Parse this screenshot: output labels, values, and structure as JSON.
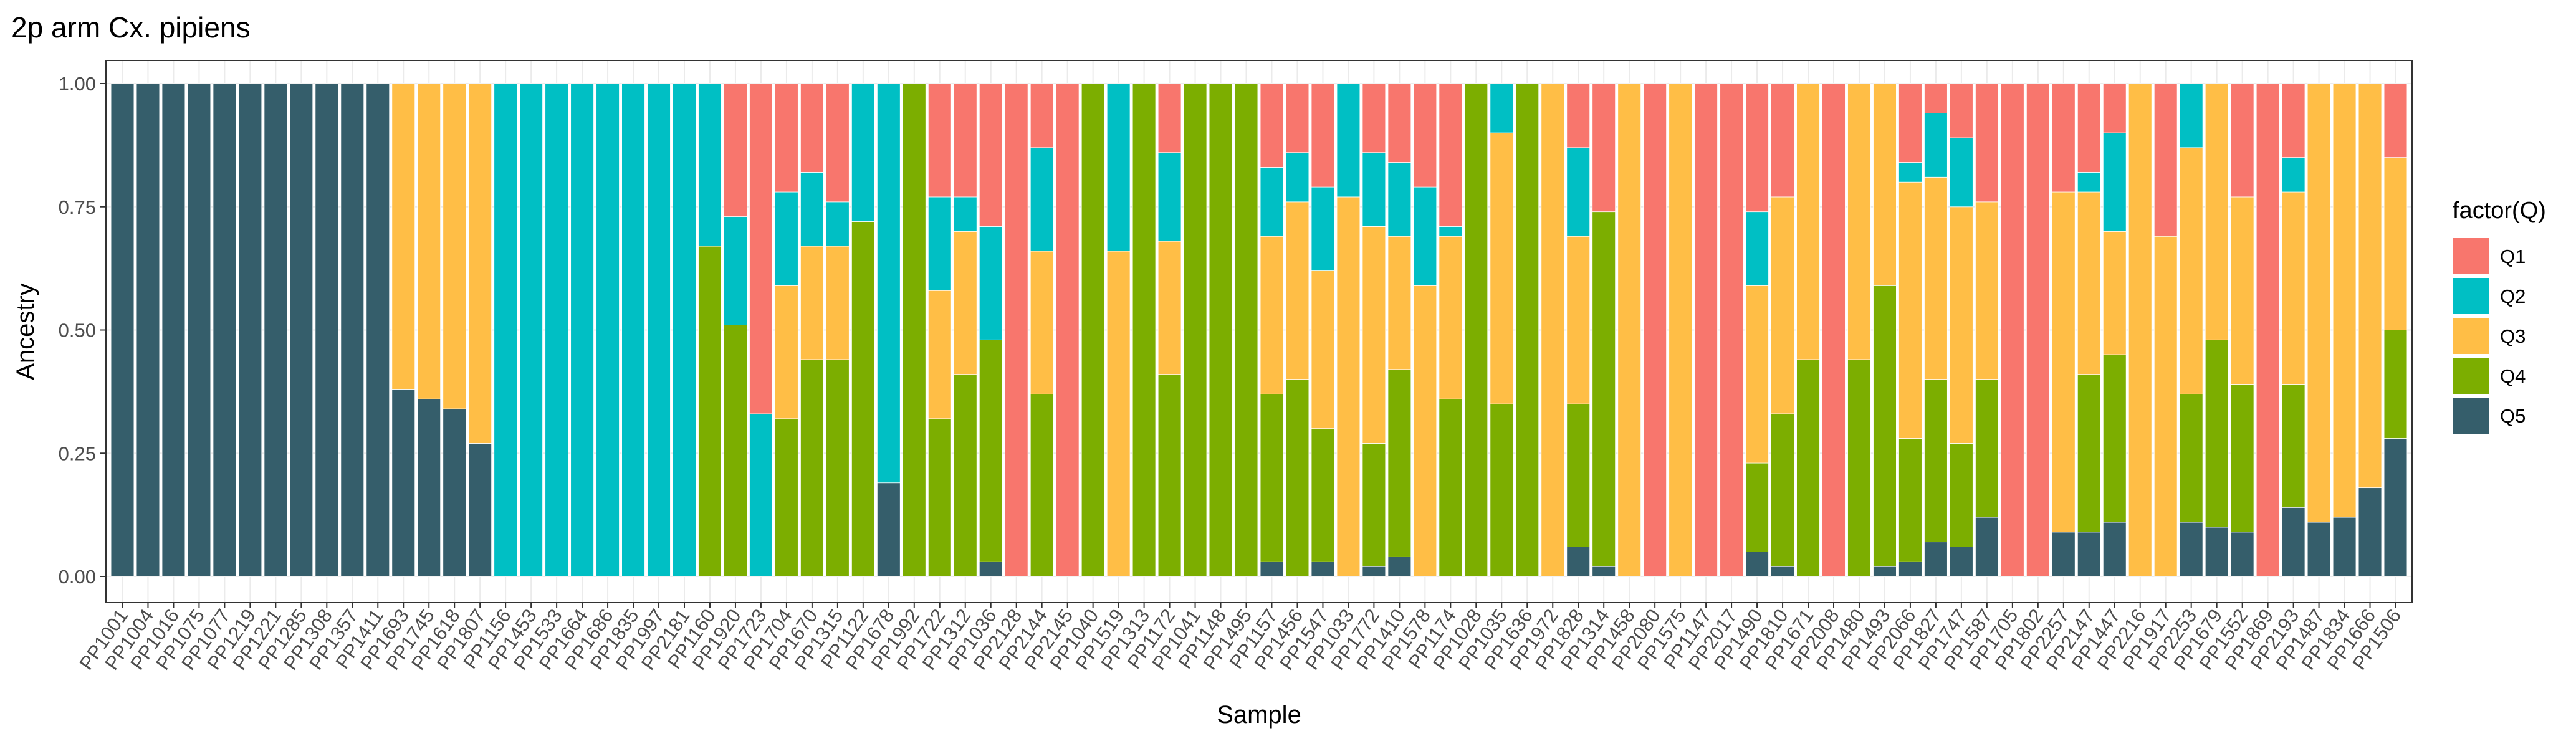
{
  "chart_data": {
    "type": "bar",
    "stacked": true,
    "title": "2p arm Cx. pipiens",
    "xlabel": "Sample",
    "ylabel": "Ancestry",
    "ylim": [
      0,
      1
    ],
    "yticks": [
      "0.00",
      "0.25",
      "0.50",
      "0.75",
      "1.00"
    ],
    "grid": true,
    "legend_title": "factor(Q)",
    "legend_position": "right",
    "series": [
      {
        "name": "Q1",
        "color": "#F8766D"
      },
      {
        "name": "Q2",
        "color": "#00BFC4"
      },
      {
        "name": "Q3",
        "color": "#FFBE46"
      },
      {
        "name": "Q4",
        "color": "#7CAE00"
      },
      {
        "name": "Q5",
        "color": "#355E6B"
      }
    ],
    "categories": [
      "PP1001",
      "PP1004",
      "PP1016",
      "PP1075",
      "PP1077",
      "PP1219",
      "PP1221",
      "PP1285",
      "PP1308",
      "PP1357",
      "PP1411",
      "PP1693",
      "PP1745",
      "PP1618",
      "PP1807",
      "PP1156",
      "PP1453",
      "PP1533",
      "PP1664",
      "PP1686",
      "PP1835",
      "PP1997",
      "PP2181",
      "PP1160",
      "PP1920",
      "PP1723",
      "PP1704",
      "PP1670",
      "PP1315",
      "PP1122",
      "PP1678",
      "PP1992",
      "PP1722",
      "PP1312",
      "PP1036",
      "PP2128",
      "PP2144",
      "PP2145",
      "PP1040",
      "PP1519",
      "PP1313",
      "PP1172",
      "PP1041",
      "PP1148",
      "PP1495",
      "PP1157",
      "PP1456",
      "PP1547",
      "PP1033",
      "PP1772",
      "PP1410",
      "PP1578",
      "PP1174",
      "PP1028",
      "PP1035",
      "PP1636",
      "PP1972",
      "PP1828",
      "PP1314",
      "PP1458",
      "PP2080",
      "PP1575",
      "PP1147",
      "PP2017",
      "PP1490",
      "PP1810",
      "PP1671",
      "PP2008",
      "PP1480",
      "PP1493",
      "PP2066",
      "PP1827",
      "PP1747",
      "PP1587",
      "PP1705",
      "PP1802",
      "PP2257",
      "PP2147",
      "PP1447",
      "PP2216",
      "PP1917",
      "PP2253",
      "PP1679",
      "PP1552",
      "PP1869",
      "PP2193",
      "PP1487",
      "PP1834",
      "PP1666",
      "PP1506"
    ],
    "values": [
      [
        0,
        0,
        0,
        0,
        1
      ],
      [
        0,
        0,
        0,
        0,
        1
      ],
      [
        0,
        0,
        0,
        0,
        1
      ],
      [
        0,
        0,
        0,
        0,
        1
      ],
      [
        0,
        0,
        0,
        0,
        1
      ],
      [
        0,
        0,
        0,
        0,
        1
      ],
      [
        0,
        0,
        0,
        0,
        1
      ],
      [
        0,
        0,
        0,
        0,
        1
      ],
      [
        0,
        0,
        0,
        0,
        1
      ],
      [
        0,
        0,
        0,
        0,
        1
      ],
      [
        0,
        0,
        0,
        0,
        1
      ],
      [
        0,
        0,
        0.62,
        0,
        0.38
      ],
      [
        0,
        0,
        0.64,
        0,
        0.36
      ],
      [
        0,
        0,
        0.66,
        0,
        0.34
      ],
      [
        0,
        0,
        0.73,
        0,
        0.27
      ],
      [
        0,
        1,
        0,
        0,
        0
      ],
      [
        0,
        1,
        0,
        0,
        0
      ],
      [
        0,
        1,
        0,
        0,
        0
      ],
      [
        0,
        1,
        0,
        0,
        0
      ],
      [
        0,
        1,
        0,
        0,
        0
      ],
      [
        0,
        1,
        0,
        0,
        0
      ],
      [
        0,
        1,
        0,
        0,
        0
      ],
      [
        0,
        1,
        0,
        0,
        0
      ],
      [
        0,
        0.33,
        0,
        0.67,
        0
      ],
      [
        0.27,
        0.22,
        0,
        0.51,
        0
      ],
      [
        0.67,
        0.33,
        0,
        0,
        0
      ],
      [
        0.22,
        0.19,
        0.27,
        0.32,
        0
      ],
      [
        0.18,
        0.15,
        0.23,
        0.44,
        0
      ],
      [
        0.24,
        0.09,
        0.23,
        0.44,
        0
      ],
      [
        0,
        0.28,
        0,
        0.72,
        0
      ],
      [
        0,
        0.81,
        0,
        0,
        0.19
      ],
      [
        0,
        0,
        0,
        1,
        0
      ],
      [
        0.23,
        0.19,
        0.26,
        0.32,
        0
      ],
      [
        0.23,
        0.07,
        0.29,
        0.41,
        0
      ],
      [
        0.29,
        0.23,
        0,
        0.45,
        0.03
      ],
      [
        1,
        0,
        0,
        0,
        0
      ],
      [
        0.13,
        0.21,
        0.29,
        0.37,
        0
      ],
      [
        1,
        0,
        0,
        0,
        0
      ],
      [
        0,
        0,
        0,
        1,
        0
      ],
      [
        0,
        0.34,
        0.66,
        0,
        0
      ],
      [
        0,
        0,
        0,
        1,
        0
      ],
      [
        0.14,
        0.18,
        0.27,
        0.41,
        0
      ],
      [
        0,
        0,
        0,
        1,
        0
      ],
      [
        0,
        0,
        0,
        1,
        0
      ],
      [
        0,
        0,
        0,
        1,
        0
      ],
      [
        0.17,
        0.14,
        0.32,
        0.34,
        0.03
      ],
      [
        0.14,
        0.1,
        0.36,
        0.4,
        0
      ],
      [
        0.21,
        0.17,
        0.32,
        0.27,
        0.03
      ],
      [
        0,
        0.23,
        0.77,
        0,
        0
      ],
      [
        0.14,
        0.15,
        0.44,
        0.25,
        0.02
      ],
      [
        0.16,
        0.15,
        0.27,
        0.38,
        0.04
      ],
      [
        0.21,
        0.2,
        0.59,
        0,
        0
      ],
      [
        0.29,
        0.02,
        0.33,
        0.36,
        0
      ],
      [
        0,
        0,
        0,
        1,
        0
      ],
      [
        0,
        0.1,
        0.55,
        0.35,
        0
      ],
      [
        0,
        0,
        0,
        1,
        0
      ],
      [
        0,
        0,
        1,
        0,
        0
      ],
      [
        0.13,
        0.18,
        0.34,
        0.29,
        0.06
      ],
      [
        0.26,
        0,
        0,
        0.72,
        0.02
      ],
      [
        0,
        0,
        1,
        0,
        0
      ],
      [
        1,
        0,
        0,
        0,
        0
      ],
      [
        0,
        0,
        1,
        0,
        0
      ],
      [
        1,
        0,
        0,
        0,
        0
      ],
      [
        1,
        0,
        0,
        0,
        0
      ],
      [
        0.26,
        0.15,
        0.36,
        0.18,
        0.05
      ],
      [
        0.23,
        0,
        0.44,
        0.31,
        0.02
      ],
      [
        0,
        0,
        0.56,
        0.44,
        0
      ],
      [
        1,
        0,
        0,
        0,
        0
      ],
      [
        0,
        0,
        0.56,
        0.44,
        0
      ],
      [
        0,
        0,
        0.41,
        0.57,
        0.02
      ],
      [
        0.16,
        0.04,
        0.52,
        0.25,
        0.03
      ],
      [
        0.06,
        0.13,
        0.41,
        0.33,
        0.07
      ],
      [
        0.11,
        0.14,
        0.48,
        0.21,
        0.06
      ],
      [
        0.24,
        0,
        0.36,
        0.28,
        0.12
      ],
      [
        1,
        0,
        0,
        0,
        0
      ],
      [
        1,
        0,
        0,
        0,
        0
      ],
      [
        0.22,
        0,
        0.69,
        0,
        0.09
      ],
      [
        0.18,
        0.04,
        0.37,
        0.32,
        0.09
      ],
      [
        0.1,
        0.2,
        0.25,
        0.34,
        0.11
      ],
      [
        0,
        0,
        1,
        0,
        0
      ],
      [
        0.31,
        0,
        0.69,
        0,
        0
      ],
      [
        0,
        0.13,
        0.5,
        0.26,
        0.11
      ],
      [
        0,
        0,
        0.52,
        0.38,
        0.1
      ],
      [
        0.23,
        0,
        0.38,
        0.3,
        0.09
      ],
      [
        1,
        0,
        0,
        0,
        0
      ],
      [
        0.15,
        0.07,
        0.39,
        0.25,
        0.14
      ],
      [
        0,
        0,
        0.89,
        0,
        0.11
      ],
      [
        0,
        0,
        0.88,
        0,
        0.12
      ],
      [
        0,
        0,
        0.82,
        0,
        0.18
      ],
      [
        0.15,
        0,
        0.35,
        0.22,
        0.28
      ]
    ]
  }
}
